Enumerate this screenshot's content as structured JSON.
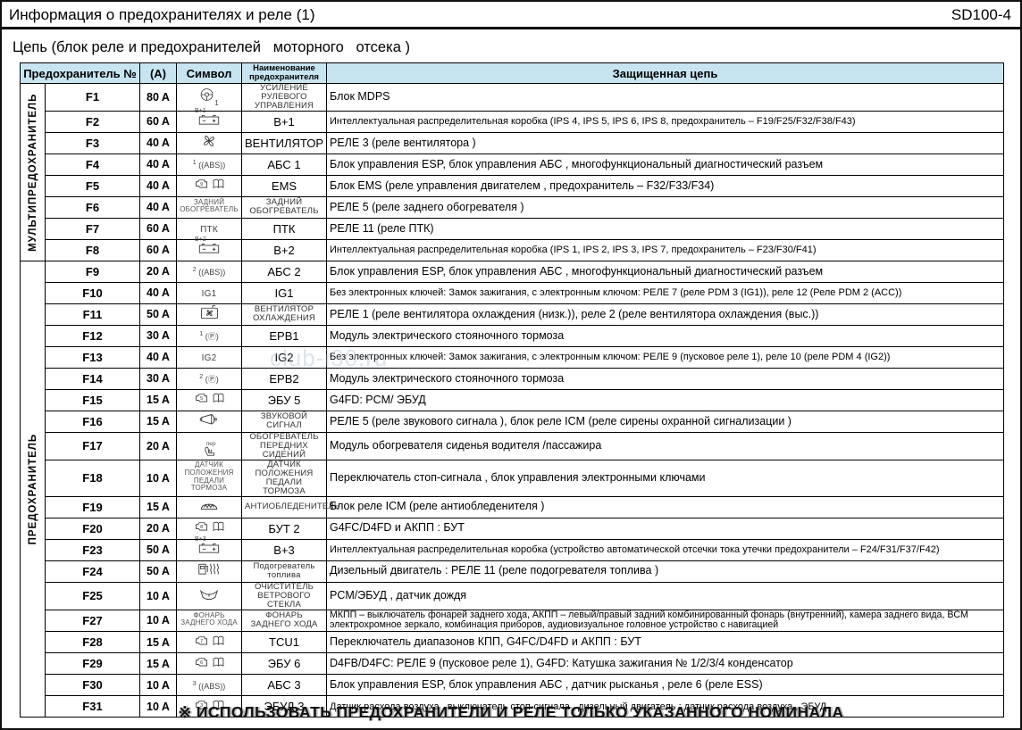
{
  "page": {
    "title": "Информация о предохранителях и реле (1)",
    "code": "SD100-4",
    "subtitle": "Цепь (блок реле и предохранителей   моторного   отсека )",
    "footer": "※ ИСПОЛЬЗОВАТЬ ПРЕДОХРАНИТЕЛИ И РЕЛЕ ТОЛЬКО УКАЗАННОГО НОМИНАЛА",
    "watermark": "club-i30.ru",
    "header_bg": "#c7e5f1"
  },
  "table": {
    "headers": {
      "fuse": "Предохранитель №",
      "amp": "(А)",
      "symbol": "Символ",
      "name": "Наименование предохранителя",
      "circuit": "Защищенная цепь"
    },
    "groups": [
      {
        "label": "МУЛЬТИПРЕДОХРАНИТЕЛЬ",
        "rows": 8
      },
      {
        "label": "ПРЕДОХРАНИТЕЛЬ",
        "rows": 20
      }
    ],
    "rows": [
      {
        "fuse": "F1",
        "amp": "80 A",
        "icon": "steering-wheel",
        "icon_num": "1",
        "icon_label": "",
        "name": "УСИЛЕНИЕ РУЛЕВОГО УПРАВЛЕНИЯ",
        "circuit": "Блок MDPS"
      },
      {
        "fuse": "F2",
        "amp": "60 A",
        "icon": "battery",
        "icon_num": "",
        "icon_label": "B+1",
        "name": "В+1",
        "circuit": "Интеллектуальная распределительная коробка (IPS 4, IPS 5, IPS 6, IPS 8, предохранитель – F19/F25/F32/F38/F43)"
      },
      {
        "fuse": "F3",
        "amp": "40 A",
        "icon": "fan",
        "icon_num": "",
        "icon_label": "",
        "name": "ВЕНТИЛЯТОР",
        "circuit": "РЕЛЕ 3 (реле вентилятора )"
      },
      {
        "fuse": "F4",
        "amp": "40 A",
        "icon": "abs",
        "icon_num": "1",
        "icon_label": "",
        "name": "АБС 1",
        "circuit": "Блок управления ESP, блок управления АБС , многофункциональный диагностический разъем"
      },
      {
        "fuse": "F5",
        "amp": "40 A",
        "icon": "engine-book",
        "icon_num": "9",
        "icon_label": "",
        "name": "EMS",
        "circuit": "Блок EMS (реле управления двигателем , предохранитель – F32/F33/F34)"
      },
      {
        "fuse": "F6",
        "amp": "40 A",
        "icon": "label",
        "icon_num": "",
        "icon_label": "ЗАДНИЙ ОБОГРЕВАТЕЛЬ",
        "name": "ЗАДНИЙ ОБОГРЕВАТЕЛЬ",
        "circuit": "РЕЛЕ 5 (реле заднего обогревателя )"
      },
      {
        "fuse": "F7",
        "amp": "60 A",
        "icon": "label",
        "icon_num": "",
        "icon_label": "ПТК",
        "name": "ПТК",
        "circuit": "РЕЛЕ 11 (реле ПТК)"
      },
      {
        "fuse": "F8",
        "amp": "60 A",
        "icon": "battery",
        "icon_num": "",
        "icon_label": "B+2",
        "name": "В+2",
        "circuit": "Интеллектуальная распределительная коробка (IPS 1, IPS 2, IPS 3, IPS 7, предохранитель – F23/F30/F41)"
      },
      {
        "fuse": "F9",
        "amp": "20 A",
        "icon": "abs",
        "icon_num": "2",
        "icon_label": "",
        "name": "АБС 2",
        "circuit": "Блок управления ESP, блок управления АБС , многофункциональный диагностический разъем"
      },
      {
        "fuse": "F10",
        "amp": "40 A",
        "icon": "label",
        "icon_num": "",
        "icon_label": "IG1",
        "name": "IG1",
        "circuit": "Без электронных ключей: Замок зажигания, с электронным ключом: РЕЛЕ 7 (реле PDM 3 (IG1)), реле 12 (Реле PDM 2 (ACC))"
      },
      {
        "fuse": "F11",
        "amp": "50 A",
        "icon": "cooling-fan",
        "icon_num": "",
        "icon_label": "",
        "name": "ВЕНТИЛЯТОР ОХЛАЖДЕНИЯ",
        "circuit": "РЕЛЕ 1 (реле вентилятора охлаждения (низк.)), реле 2 (реле вентилятора охлаждения (выс.))"
      },
      {
        "fuse": "F12",
        "amp": "30 A",
        "icon": "parking-brake",
        "icon_num": "1",
        "icon_label": "",
        "name": "EPB1",
        "circuit": "Модуль электрического стояночного тормоза"
      },
      {
        "fuse": "F13",
        "amp": "40 A",
        "icon": "label",
        "icon_num": "",
        "icon_label": "IG2",
        "name": "IG2",
        "circuit": "Без электронных ключей: Замок зажигания, с электронным ключом: РЕЛЕ 9 (пусковое реле 1), реле 10 (реле PDM 4 (IG2))"
      },
      {
        "fuse": "F14",
        "amp": "30 A",
        "icon": "parking-brake",
        "icon_num": "2",
        "icon_label": "",
        "name": "EPB2",
        "circuit": "Модуль электрического стояночного тормоза"
      },
      {
        "fuse": "F15",
        "amp": "15 A",
        "icon": "engine-book",
        "icon_num": "5",
        "icon_label": "",
        "name": "ЭБУ 5",
        "circuit": "G4FD: PCM/ ЭБУД"
      },
      {
        "fuse": "F16",
        "amp": "15 A",
        "icon": "horn",
        "icon_num": "",
        "icon_label": "",
        "name": "ЗВУКОВОЙ СИГНАЛ",
        "circuit": "РЕЛЕ 5 (реле звукового сигнала ), блок реле ICM (реле сирены охранной сигнализации )"
      },
      {
        "fuse": "F17",
        "amp": "20 A",
        "icon": "seat-heater",
        "icon_num": "",
        "icon_label": "пер",
        "name": "ОБОГРЕВАТЕЛЬ ПЕРЕДНИХ СИДЕНИЙ",
        "circuit": "Модуль обогревателя сиденья водителя /пассажира"
      },
      {
        "fuse": "F18",
        "amp": "10 A",
        "icon": "label",
        "icon_num": "",
        "icon_label": "ДАТЧИК ПОЛОЖЕНИЯ ПЕДАЛИ ТОРМОЗА",
        "name": "ДАТЧИК ПОЛОЖЕНИЯ ПЕДАЛИ ТОРМОЗА",
        "circuit": "Переключатель стоп-сигнала , блок управления электронными ключами"
      },
      {
        "fuse": "F19",
        "amp": "15 A",
        "icon": "defroster",
        "icon_num": "",
        "icon_label": "",
        "name": "АНТИОБЛЕДЕНИТЕЛЬ",
        "circuit": "Блок реле ICM (реле антиобледенителя )"
      },
      {
        "fuse": "F20",
        "amp": "20 A",
        "icon": "engine-book",
        "icon_num": "8",
        "icon_label": "",
        "name": "БУТ 2",
        "circuit": "G4FC/D4FD и АКПП : БУТ"
      },
      {
        "fuse": "F23",
        "amp": "50 A",
        "icon": "battery",
        "icon_num": "",
        "icon_label": "B+3",
        "name": "В+3",
        "circuit": "Интеллектуальная распределительная коробка (устройство автоматической отсечки тока утечки предохранители – F24/F31/F37/F42)"
      },
      {
        "fuse": "F24",
        "amp": "50 A",
        "icon": "fuel-heater",
        "icon_num": "",
        "icon_label": "",
        "name": "Подогреватель топлива",
        "circuit": "Дизельный двигатель : РЕЛЕ 11 (реле подогревателя топлива )"
      },
      {
        "fuse": "F25",
        "amp": "10 A",
        "icon": "wiper",
        "icon_num": "",
        "icon_label": "",
        "name": "ОЧИСТИТЕЛЬ ВЕТРОВОГО СТЕКЛА",
        "circuit": "PCM/ЭБУД , датчик дождя"
      },
      {
        "fuse": "F27",
        "amp": "10 A",
        "icon": "label",
        "icon_num": "",
        "icon_label": "ФОНАРЬ ЗАДНЕГО ХОДА",
        "name": "ФОНАРЬ ЗАДНЕГО ХОДА",
        "circuit": "МКПП – выключатель фонарей заднего хода, АКПП – левый/правый задний комбинированный фонарь (внутренний), камера заднего вида, BCM электрохромное зеркало, комбинация приборов, аудиовизуальное головное устройство с навигацией"
      },
      {
        "fuse": "F28",
        "amp": "15 A",
        "icon": "engine-book",
        "icon_num": "7",
        "icon_label": "",
        "name": "TCU1",
        "circuit": "Переключатель диапазонов КПП, G4FC/D4FD и АКПП : БУТ"
      },
      {
        "fuse": "F29",
        "amp": "15 A",
        "icon": "engine-book",
        "icon_num": "6",
        "icon_label": "",
        "name": "ЭБУ 6",
        "circuit": "D4FB/D4FC: РЕЛЕ 9 (пусковое реле 1), G4FD: Катушка зажигания № 1/2/3/4 конденсатор"
      },
      {
        "fuse": "F30",
        "amp": "10 A",
        "icon": "abs",
        "icon_num": "3",
        "icon_label": "",
        "name": "АБС 3",
        "circuit": "Блок управления ESP, блок управления АБС , датчик рысканья , реле 6 (реле ESS)"
      },
      {
        "fuse": "F31",
        "amp": "10 A",
        "icon": "engine-book",
        "icon_num": "3",
        "icon_label": "",
        "name": "ЭБУД 3",
        "circuit": "Датчик расхода воздуха , выключатель стоп-сигнала , дизельный двигатель : датчик расхода воздуха , ЭБУД"
      }
    ]
  }
}
